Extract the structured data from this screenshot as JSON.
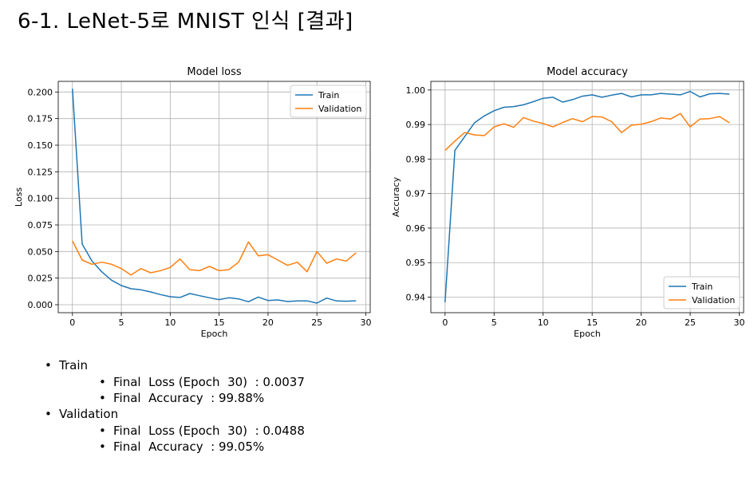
{
  "slide": {
    "title": "6-1. LeNet-5로 MNIST 인식 [결과]"
  },
  "summary": [
    {
      "label": "Train",
      "items": [
        "Final  Loss (Epoch  30)  : 0.0037",
        "Final  Accuracy  : 99.88%"
      ]
    },
    {
      "label": "Validation",
      "items": [
        "Final  Loss (Epoch  30)  : 0.0488",
        "Final  Accuracy  : 99.05%"
      ]
    }
  ],
  "chart_data": [
    {
      "type": "line",
      "title": "Model loss",
      "xlabel": "Epoch",
      "ylabel": "Loss",
      "xlim": [
        -1.45,
        30.45
      ],
      "ylim": [
        -0.0075,
        0.21
      ],
      "xticks": [
        0,
        5,
        10,
        15,
        20,
        25,
        30
      ],
      "xtick_labels": [
        "0",
        "5",
        "10",
        "15",
        "20",
        "25",
        "30"
      ],
      "yticks": [
        0,
        0.025,
        0.05,
        0.075,
        0.1,
        0.125,
        0.15,
        0.175,
        0.2
      ],
      "ytick_labels": [
        "0.000",
        "0.025",
        "0.050",
        "0.075",
        "0.100",
        "0.125",
        "0.150",
        "0.175",
        "0.200"
      ],
      "grid": true,
      "legend": "top-right",
      "x": [
        0,
        1,
        2,
        3,
        4,
        5,
        6,
        7,
        8,
        9,
        10,
        11,
        12,
        13,
        14,
        15,
        16,
        17,
        18,
        19,
        20,
        21,
        22,
        23,
        24,
        25,
        26,
        27,
        28,
        29
      ],
      "series": [
        {
          "name": "Train",
          "color": "#1f77b4",
          "values": [
            0.203,
            0.057,
            0.041,
            0.031,
            0.023,
            0.018,
            0.015,
            0.014,
            0.012,
            0.0095,
            0.0075,
            0.0068,
            0.0105,
            0.0085,
            0.0065,
            0.0048,
            0.0065,
            0.0055,
            0.0028,
            0.0072,
            0.004,
            0.0045,
            0.003,
            0.0036,
            0.0036,
            0.0015,
            0.0062,
            0.0035,
            0.0033,
            0.0037
          ]
        },
        {
          "name": "Validation",
          "color": "#ff7f0e",
          "values": [
            0.06,
            0.042,
            0.038,
            0.04,
            0.038,
            0.034,
            0.028,
            0.034,
            0.03,
            0.032,
            0.035,
            0.043,
            0.033,
            0.032,
            0.036,
            0.032,
            0.033,
            0.04,
            0.059,
            0.046,
            0.047,
            0.042,
            0.037,
            0.04,
            0.031,
            0.05,
            0.039,
            0.043,
            0.041,
            0.0488
          ]
        }
      ]
    },
    {
      "type": "line",
      "title": "Model accuracy",
      "xlabel": "Epoch",
      "ylabel": "Accuracy",
      "xlim": [
        -1.45,
        30.45
      ],
      "ylim": [
        0.9355,
        1.0025
      ],
      "xticks": [
        0,
        5,
        10,
        15,
        20,
        25,
        30
      ],
      "xtick_labels": [
        "0",
        "5",
        "10",
        "15",
        "20",
        "25",
        "30"
      ],
      "yticks": [
        0.94,
        0.95,
        0.96,
        0.97,
        0.98,
        0.99,
        1.0
      ],
      "ytick_labels": [
        "0.94",
        "0.95",
        "0.96",
        "0.97",
        "0.98",
        "0.99",
        "1.00"
      ],
      "grid": true,
      "legend": "bottom-right",
      "x": [
        0,
        1,
        2,
        3,
        4,
        5,
        6,
        7,
        8,
        9,
        10,
        11,
        12,
        13,
        14,
        15,
        16,
        17,
        18,
        19,
        20,
        21,
        22,
        23,
        24,
        25,
        26,
        27,
        28,
        29
      ],
      "series": [
        {
          "name": "Train",
          "color": "#1f77b4",
          "values": [
            0.9385,
            0.9825,
            0.9865,
            0.9905,
            0.9925,
            0.994,
            0.995,
            0.9952,
            0.9957,
            0.9966,
            0.9976,
            0.9979,
            0.9965,
            0.9972,
            0.9982,
            0.9986,
            0.9979,
            0.9985,
            0.999,
            0.998,
            0.9986,
            0.9986,
            0.999,
            0.9988,
            0.9986,
            0.9996,
            0.998,
            0.9989,
            0.999,
            0.9988
          ]
        },
        {
          "name": "Validation",
          "color": "#ff7f0e",
          "values": [
            0.9825,
            0.9852,
            0.9877,
            0.987,
            0.9868,
            0.9893,
            0.9902,
            0.9892,
            0.992,
            0.991,
            0.9903,
            0.9893,
            0.9906,
            0.9917,
            0.9908,
            0.9923,
            0.9922,
            0.9908,
            0.9877,
            0.9898,
            0.9901,
            0.9908,
            0.9919,
            0.9916,
            0.9932,
            0.9893,
            0.9916,
            0.9917,
            0.9923,
            0.9905
          ]
        }
      ]
    }
  ]
}
